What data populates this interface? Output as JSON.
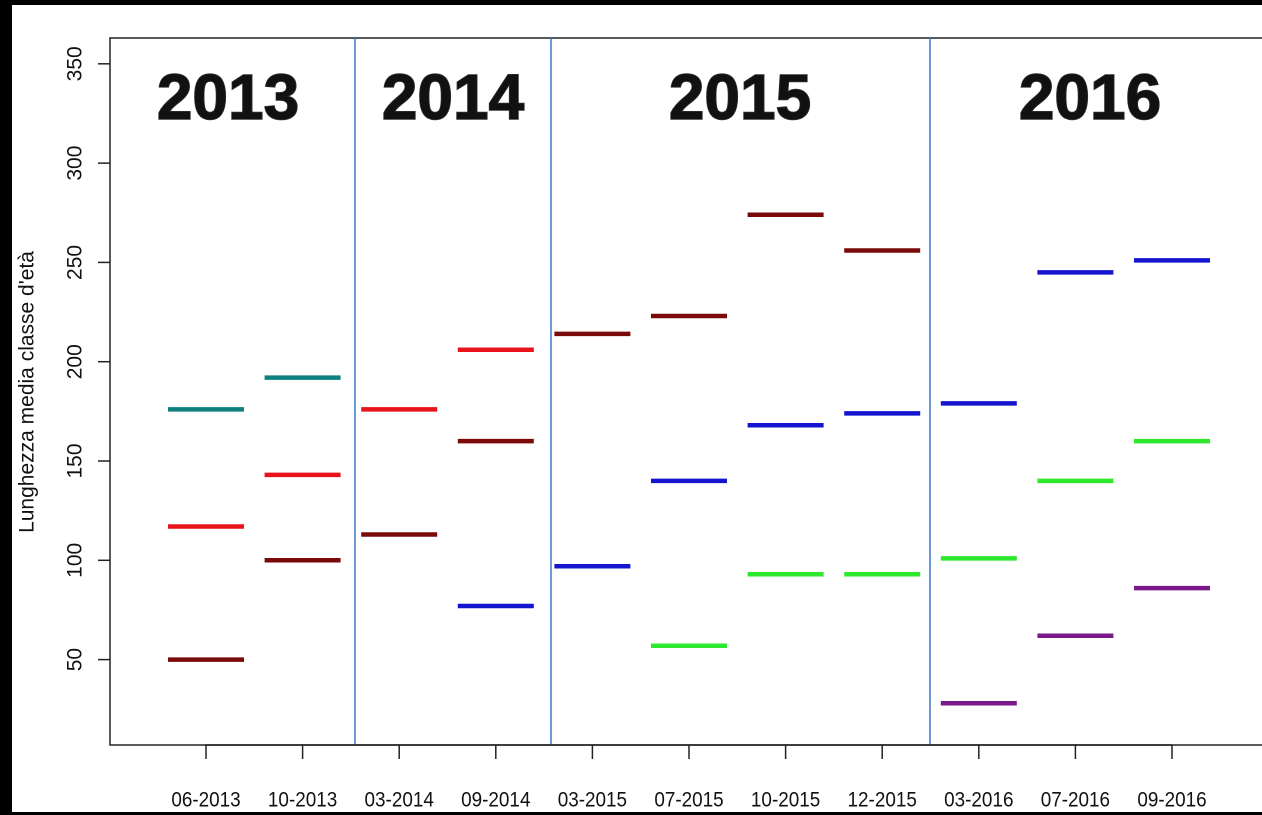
{
  "chart_data": {
    "type": "segment",
    "y_label": "Lunghezza media classe d'età",
    "categories": [
      "06-2013",
      "10-2013",
      "03-2014",
      "09-2014",
      "03-2015",
      "07-2015",
      "10-2015",
      "12-2015",
      "03-2016",
      "07-2016",
      "09-2016"
    ],
    "series": [
      {
        "color": "#7a0a0a",
        "values": [
          50,
          100,
          113,
          160,
          214,
          223,
          274,
          256,
          null,
          null,
          null
        ]
      },
      {
        "color": "#e8131b",
        "values": [
          117,
          143,
          176,
          206,
          null,
          null,
          null,
          null,
          null,
          null,
          null
        ]
      },
      {
        "color": "#0f8080",
        "values": [
          176,
          192,
          null,
          null,
          null,
          null,
          null,
          null,
          null,
          null,
          null
        ]
      },
      {
        "color": "#1515d0",
        "values": [
          null,
          null,
          null,
          77,
          97,
          140,
          168,
          174,
          179,
          245,
          251
        ]
      },
      {
        "color": "#2ee82e",
        "values": [
          null,
          null,
          null,
          null,
          null,
          57,
          93,
          93,
          101,
          140,
          160
        ]
      },
      {
        "color": "#7a1a8a",
        "values": [
          null,
          null,
          null,
          null,
          null,
          null,
          null,
          null,
          28,
          62,
          86
        ]
      }
    ],
    "annotations": [
      {
        "text": "2013",
        "color": "#b5121b"
      },
      {
        "text": "2014",
        "color": "#1a6fc4"
      },
      {
        "text": "2015",
        "color": "#3ce83c"
      },
      {
        "text": "2016",
        "color": "#5a4a8a"
      }
    ],
    "ylim": [
      7,
      363
    ],
    "yticks": [
      50,
      100,
      150,
      200,
      250,
      300,
      350
    ]
  }
}
